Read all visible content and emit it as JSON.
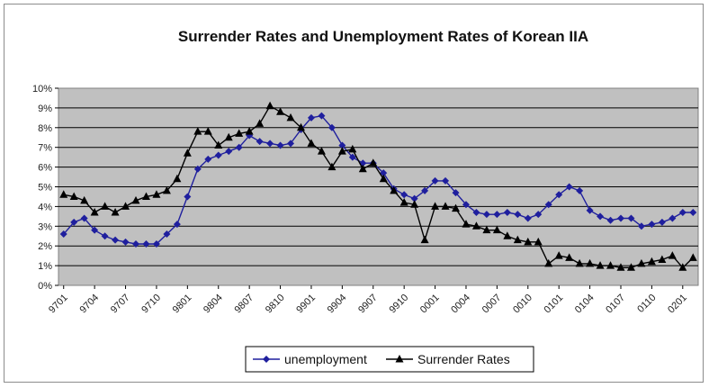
{
  "chart_data": {
    "type": "line",
    "title": "Surrender Rates and Unemployment Rates of Korean IIA",
    "xlabel": "",
    "ylabel": "",
    "ylim": [
      0,
      10
    ],
    "y_ticks": [
      "0%",
      "1%",
      "2%",
      "3%",
      "4%",
      "5%",
      "6%",
      "7%",
      "8%",
      "9%",
      "10%"
    ],
    "x_tick_labels": [
      "9701",
      "9704",
      "9707",
      "9710",
      "9801",
      "9804",
      "9807",
      "9810",
      "9901",
      "9904",
      "9907",
      "9910",
      "0001",
      "0004",
      "0007",
      "0010",
      "0101",
      "0104",
      "0107",
      "0110",
      "0201"
    ],
    "x_tick_step": 3,
    "grid": true,
    "legend_position": "bottom",
    "colors": {
      "unemployment": "#1f1f9e",
      "surrender": "#000000",
      "plot_bg": "#c0c0c0"
    },
    "series": [
      {
        "name": "unemployment",
        "marker": "diamond",
        "values": [
          2.6,
          3.2,
          3.4,
          2.8,
          2.5,
          2.3,
          2.2,
          2.1,
          2.1,
          2.1,
          2.6,
          3.1,
          4.5,
          5.9,
          6.4,
          6.6,
          6.8,
          7.0,
          7.6,
          7.3,
          7.2,
          7.1,
          7.2,
          7.9,
          8.5,
          8.6,
          8.0,
          7.1,
          6.5,
          6.2,
          6.2,
          5.7,
          4.9,
          4.6,
          4.4,
          4.8,
          5.3,
          5.3,
          4.7,
          4.1,
          3.7,
          3.6,
          3.6,
          3.7,
          3.6,
          3.4,
          3.6,
          4.1,
          4.6,
          5.0,
          4.8,
          3.8,
          3.5,
          3.3,
          3.4,
          3.4,
          3.0,
          3.1,
          3.2,
          3.4,
          3.7,
          3.7
        ]
      },
      {
        "name": "Surrender Rates",
        "marker": "triangle",
        "values": [
          4.6,
          4.5,
          4.3,
          3.7,
          4.0,
          3.7,
          4.0,
          4.3,
          4.5,
          4.6,
          4.8,
          5.4,
          6.7,
          7.8,
          7.8,
          7.1,
          7.5,
          7.7,
          7.8,
          8.2,
          9.1,
          8.8,
          8.5,
          8.0,
          7.2,
          6.8,
          6.0,
          6.8,
          6.9,
          5.9,
          6.2,
          5.4,
          4.8,
          4.2,
          4.1,
          2.3,
          4.0,
          4.0,
          3.9,
          3.1,
          3.0,
          2.8,
          2.8,
          2.5,
          2.3,
          2.2,
          2.2,
          1.1,
          1.5,
          1.4,
          1.1,
          1.1,
          1.0,
          1.0,
          0.9,
          0.9,
          1.1,
          1.2,
          1.3,
          1.5,
          0.9,
          1.4
        ]
      }
    ]
  }
}
